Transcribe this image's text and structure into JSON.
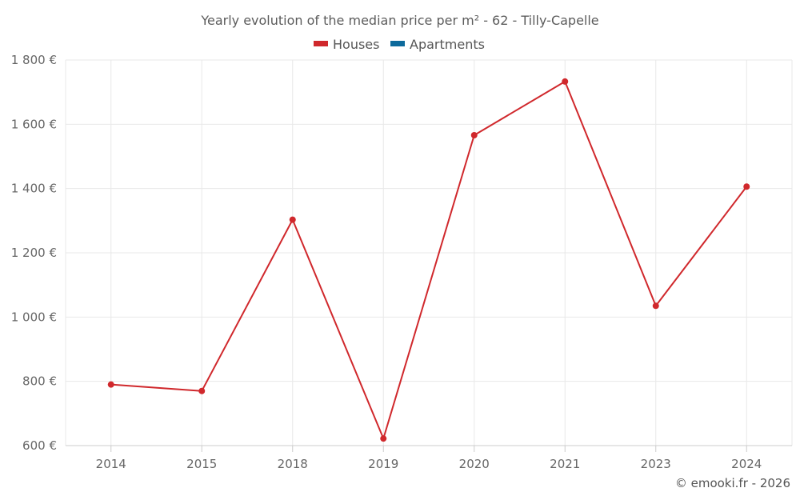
{
  "chart_data": {
    "type": "line",
    "title": "Yearly evolution of the median price per m² - 62 - Tilly-Capelle",
    "categories": [
      "2014",
      "2015",
      "2018",
      "2019",
      "2020",
      "2021",
      "2023",
      "2024"
    ],
    "series": [
      {
        "name": "Houses",
        "color": "#d0282c",
        "values": [
          790,
          770,
          1303,
          622,
          1566,
          1733,
          1035,
          1406
        ]
      },
      {
        "name": "Apartments",
        "color": "#0d6a9c",
        "values": [
          null,
          null,
          null,
          null,
          null,
          null,
          null,
          null
        ]
      }
    ],
    "ylim": [
      600,
      1800
    ],
    "yticks": [
      600,
      800,
      1000,
      1200,
      1400,
      1600,
      1800
    ],
    "ytick_labels": [
      "600 €",
      "800 €",
      "1 000 €",
      "1 200 €",
      "1 400 €",
      "1 600 €",
      "1 800 €"
    ],
    "grid": true,
    "legend_position": "top-center"
  },
  "credit": "© emooki.fr - 2026"
}
